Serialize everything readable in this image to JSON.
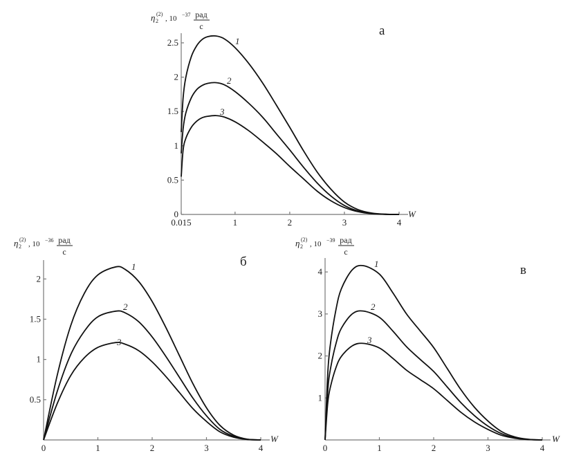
{
  "chart_data": [
    {
      "type": "line",
      "panel_label": "а",
      "ylabel": {
        "symbol": "η",
        "sub": "2",
        "sup": "(2)",
        "factor": ", 10",
        "exponent": "−37",
        "unit_num": "рад",
        "unit_den": "с"
      },
      "xlabel": "W",
      "xlim": [
        0.015,
        4
      ],
      "ylim": [
        0,
        2.6
      ],
      "xticks": [
        "0.015",
        "1",
        "2",
        "3",
        "4"
      ],
      "xtick_values": [
        0.015,
        1,
        2,
        3,
        4
      ],
      "yticks": [
        "0",
        "0.5",
        "1",
        "1.5",
        "2",
        "2.5"
      ],
      "ytick_values": [
        0,
        0.5,
        1,
        1.5,
        2,
        2.5
      ],
      "grid": false,
      "x": [
        0.015,
        0.05,
        0.1,
        0.2,
        0.3,
        0.4,
        0.5,
        0.65,
        0.8,
        1,
        1.25,
        1.5,
        1.75,
        2,
        2.25,
        2.5,
        2.75,
        3,
        3.25,
        3.5,
        3.75,
        4
      ],
      "series": [
        {
          "name": "1",
          "values": [
            1.2,
            1.7,
            2.0,
            2.3,
            2.46,
            2.55,
            2.59,
            2.6,
            2.56,
            2.43,
            2.2,
            1.92,
            1.6,
            1.27,
            0.93,
            0.62,
            0.37,
            0.18,
            0.07,
            0.02,
            0.003,
            0
          ]
        },
        {
          "name": "2",
          "values": [
            0.89,
            1.25,
            1.48,
            1.7,
            1.82,
            1.88,
            1.91,
            1.92,
            1.89,
            1.79,
            1.62,
            1.42,
            1.18,
            0.94,
            0.69,
            0.46,
            0.27,
            0.13,
            0.05,
            0.015,
            0.002,
            0
          ]
        },
        {
          "name": "3",
          "values": [
            0.55,
            0.94,
            1.11,
            1.27,
            1.36,
            1.41,
            1.43,
            1.44,
            1.42,
            1.35,
            1.22,
            1.06,
            0.89,
            0.7,
            0.52,
            0.34,
            0.2,
            0.1,
            0.04,
            0.01,
            0.002,
            0
          ]
        }
      ]
    },
    {
      "type": "line",
      "panel_label": "б",
      "ylabel": {
        "symbol": "η",
        "sub": "2",
        "sup": "(2)",
        "factor": ", 10",
        "exponent": "−36",
        "unit_num": "рад",
        "unit_den": "с"
      },
      "xlabel": "W",
      "xlim": [
        0,
        4
      ],
      "ylim": [
        0,
        2.2
      ],
      "xticks": [
        "0",
        "1",
        "2",
        "3",
        "4"
      ],
      "xtick_values": [
        0,
        1,
        2,
        3,
        4
      ],
      "yticks": [
        "0.5",
        "1",
        "1.5",
        "2"
      ],
      "ytick_values": [
        0.5,
        1,
        1.5,
        2
      ],
      "grid": false,
      "x": [
        0,
        0.25,
        0.5,
        0.75,
        1,
        1.33,
        1.5,
        1.75,
        2,
        2.25,
        2.5,
        2.75,
        3,
        3.25,
        3.5,
        3.75,
        4
      ],
      "series": [
        {
          "name": "1",
          "values": [
            0,
            0.8,
            1.42,
            1.82,
            2.05,
            2.15,
            2.12,
            1.97,
            1.72,
            1.4,
            1.05,
            0.7,
            0.4,
            0.18,
            0.06,
            0.01,
            0
          ]
        },
        {
          "name": "2",
          "values": [
            0,
            0.6,
            1.06,
            1.35,
            1.53,
            1.6,
            1.58,
            1.47,
            1.28,
            1.04,
            0.78,
            0.52,
            0.3,
            0.13,
            0.045,
            0.007,
            0
          ]
        },
        {
          "name": "3",
          "values": [
            0,
            0.45,
            0.8,
            1.02,
            1.15,
            1.21,
            1.19,
            1.11,
            0.97,
            0.79,
            0.59,
            0.39,
            0.23,
            0.1,
            0.034,
            0.006,
            0
          ]
        }
      ]
    },
    {
      "type": "line",
      "panel_label": "в",
      "ylabel": {
        "symbol": "η",
        "sub": "2",
        "sup": "(2)",
        "factor": ", 10",
        "exponent": "−39",
        "unit_num": "рад",
        "unit_den": "с"
      },
      "xlabel": "W",
      "xlim": [
        0,
        4
      ],
      "ylim": [
        0,
        4.2
      ],
      "xticks": [
        "0",
        "1",
        "2",
        "3",
        "4"
      ],
      "xtick_values": [
        0,
        1,
        2,
        3,
        4
      ],
      "yticks": [
        "1",
        "2",
        "3",
        "4"
      ],
      "ytick_values": [
        1,
        2,
        3,
        4
      ],
      "grid": false,
      "x": [
        0,
        0.05,
        0.1,
        0.2,
        0.3,
        0.5,
        0.7,
        1,
        1.25,
        1.5,
        1.75,
        2,
        2.25,
        2.5,
        2.75,
        3,
        3.25,
        3.5,
        3.75,
        4
      ],
      "series": [
        {
          "name": "1",
          "values": [
            0,
            1.6,
            2.3,
            3.1,
            3.6,
            4.05,
            4.15,
            3.95,
            3.5,
            3.0,
            2.6,
            2.2,
            1.7,
            1.2,
            0.78,
            0.45,
            0.2,
            0.07,
            0.015,
            0
          ]
        },
        {
          "name": "2",
          "values": [
            0,
            1.18,
            1.7,
            2.29,
            2.66,
            3.0,
            3.07,
            2.92,
            2.59,
            2.22,
            1.92,
            1.63,
            1.26,
            0.89,
            0.58,
            0.33,
            0.15,
            0.05,
            0.011,
            0
          ]
        },
        {
          "name": "3",
          "values": [
            0,
            0.89,
            1.27,
            1.72,
            1.99,
            2.24,
            2.3,
            2.19,
            1.94,
            1.66,
            1.44,
            1.22,
            0.94,
            0.66,
            0.43,
            0.25,
            0.11,
            0.04,
            0.008,
            0
          ]
        }
      ]
    }
  ]
}
